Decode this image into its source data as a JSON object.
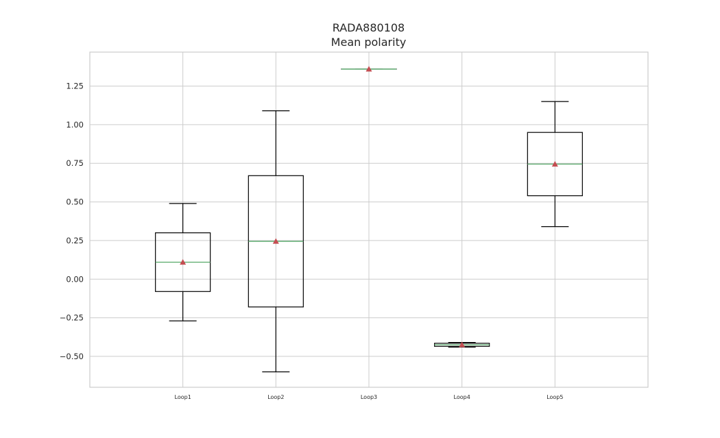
{
  "chart_data": {
    "type": "box",
    "title": "RADA880108",
    "subtitle": "Mean polarity",
    "xlabel": "",
    "ylabel": "",
    "ylim": [
      -0.7,
      1.47
    ],
    "yticks": [
      -0.5,
      -0.25,
      0.0,
      0.25,
      0.5,
      0.75,
      1.0,
      1.25
    ],
    "ytick_labels": [
      "−0.50",
      "−0.25",
      "0.00",
      "0.25",
      "0.50",
      "0.75",
      "1.00",
      "1.25"
    ],
    "grid": true,
    "categories": [
      "Loop1",
      "Loop2",
      "Loop3",
      "Loop4",
      "Loop5"
    ],
    "boxes": [
      {
        "label": "Loop1",
        "whisker_low": -0.27,
        "q1": -0.08,
        "median": 0.11,
        "q3": 0.3,
        "whisker_high": 0.49,
        "mean": 0.11
      },
      {
        "label": "Loop2",
        "whisker_low": -0.6,
        "q1": -0.18,
        "median": 0.245,
        "q3": 0.67,
        "whisker_high": 1.09,
        "mean": 0.245
      },
      {
        "label": "Loop3",
        "whisker_low": 1.36,
        "q1": 1.36,
        "median": 1.36,
        "q3": 1.36,
        "whisker_high": 1.36,
        "mean": 1.36
      },
      {
        "label": "Loop4",
        "whisker_low": -0.44,
        "q1": -0.435,
        "median": -0.425,
        "q3": -0.415,
        "whisker_high": -0.41,
        "mean": -0.425
      },
      {
        "label": "Loop5",
        "whisker_low": 0.34,
        "q1": 0.54,
        "median": 0.745,
        "q3": 0.95,
        "whisker_high": 1.15,
        "mean": 0.745
      }
    ],
    "colors": {
      "box": "#000000",
      "median": "#55a868",
      "mean_marker": "#c44e52",
      "grid": "#cccccc",
      "frame": "#cccccc"
    }
  }
}
